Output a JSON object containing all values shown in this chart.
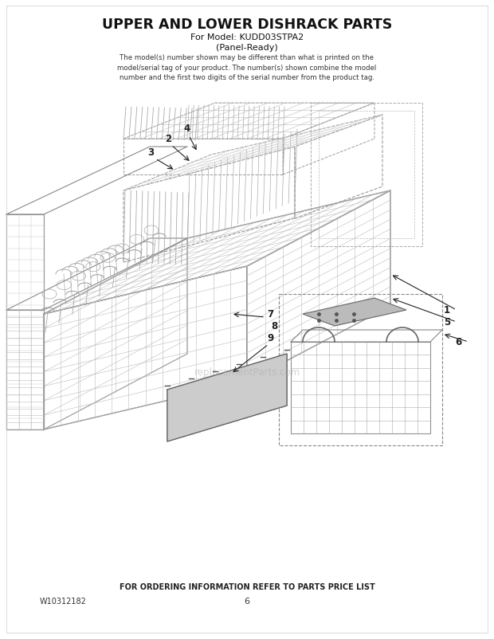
{
  "title": "UPPER AND LOWER DISHRACK PARTS",
  "model_line": "For Model: KUDD03STPA2",
  "panel_line": "(Panel-Ready)",
  "description": "The model(s) number shown may be different than what is printed on the\nmodel/serial tag of your product. The number(s) shown combine the model\nnumber and the first two digits of the serial number from the product tag.",
  "footer_left": "W10312182",
  "footer_center": "FOR ORDERING INFORMATION REFER TO PARTS PRICE LIST",
  "footer_page": "6",
  "bg_color": "#ffffff",
  "draw_color": "#aaaaaa",
  "dark_color": "#666666",
  "label_color": "#222222",
  "watermark": "replacementParts.com"
}
